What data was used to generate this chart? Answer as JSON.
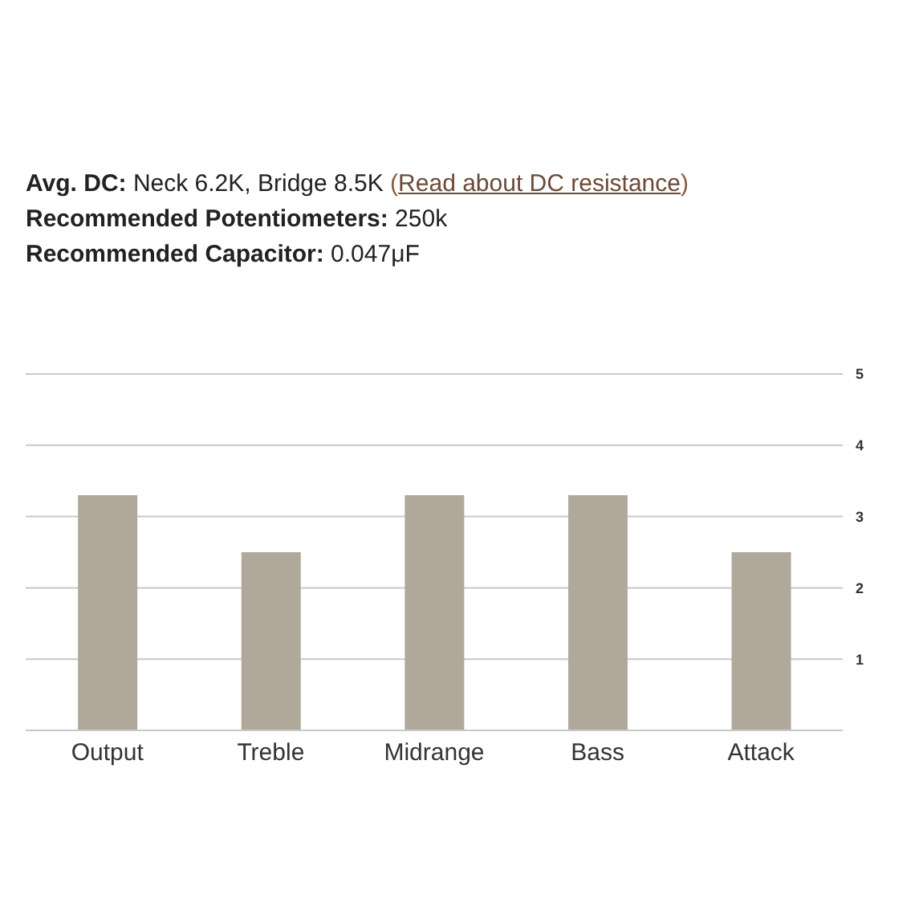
{
  "chart_data": {
    "type": "bar",
    "annotations": [
      "Avg. DC: Neck 6.2K, Bridge 8.5K (Read about DC resistance)",
      "Recommended Potentiometers: 250k",
      "Recommended Capacitor: 0.047μF"
    ],
    "categories": [
      "Output",
      "Treble",
      "Midrange",
      "Bass",
      "Attack"
    ],
    "values": [
      3.3,
      2.5,
      3.3,
      3.3,
      2.5
    ],
    "color": "#b0a89a",
    "ylim": [
      0,
      5
    ],
    "yticks": [
      {
        "value": 0,
        "label": null
      },
      1,
      2,
      3,
      4,
      5
    ],
    "grid": "y"
  }
}
